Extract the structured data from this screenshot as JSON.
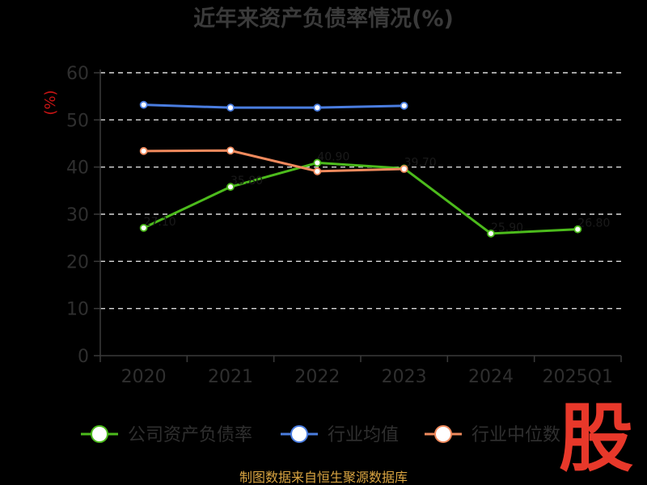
{
  "chart_data": {
    "type": "line",
    "title": "近年来资产负债率情况(%)",
    "ylabel": "(%)",
    "xlabel": "",
    "categories": [
      "2020",
      "2021",
      "2022",
      "2023",
      "2024",
      "2025Q1"
    ],
    "ylim": [
      0,
      60
    ],
    "yticks": [
      0,
      10,
      20,
      30,
      40,
      50,
      60
    ],
    "grid": true,
    "legend_position": "bottom",
    "series": [
      {
        "name": "公司资产负债率",
        "color": "#4cbb1c",
        "values": [
          27.1,
          35.8,
          40.9,
          39.7,
          25.9,
          26.8
        ]
      },
      {
        "name": "行业均值",
        "color": "#4a7de0",
        "values": [
          53.2,
          52.6,
          52.6,
          53.0,
          null,
          null
        ]
      },
      {
        "name": "行业中位数",
        "color": "#f08a5d",
        "values": [
          43.4,
          43.5,
          39.1,
          39.6,
          null,
          null
        ]
      }
    ]
  },
  "watermark": {
    "text": "股",
    "color": "#e8382a"
  },
  "source": "制图数据来自恒生聚源数据库"
}
